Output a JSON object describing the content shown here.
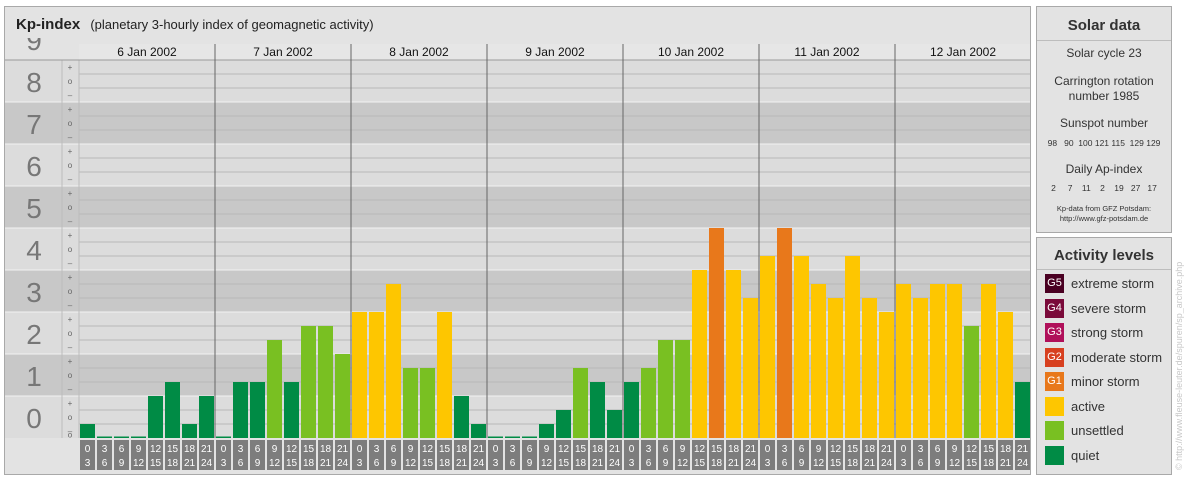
{
  "chart_data": {
    "type": "bar",
    "title": "Kp-index",
    "subtitle": "(planetary 3-hourly index of geomagnetic activity)",
    "ylim": [
      0,
      9
    ],
    "y_ticks": [
      "0",
      "1",
      "2",
      "3",
      "4",
      "5",
      "6",
      "7",
      "8",
      "9"
    ],
    "sub_tick_labels": [
      "–",
      "o",
      "+"
    ],
    "days": [
      "6 Jan 2002",
      "7 Jan 2002",
      "8 Jan 2002",
      "9 Jan 2002",
      "10 Jan 2002",
      "11 Jan 2002",
      "12 Jan 2002"
    ],
    "interval_labels": [
      [
        "0",
        "3"
      ],
      [
        "3",
        "6"
      ],
      [
        "6",
        "9"
      ],
      [
        "9",
        "12"
      ],
      [
        "12",
        "15"
      ],
      [
        "15",
        "18"
      ],
      [
        "18",
        "21"
      ],
      [
        "21",
        "24"
      ]
    ],
    "values": [
      [
        0.333,
        0,
        0,
        0,
        1,
        1.333,
        0.333,
        1
      ],
      [
        0,
        1.333,
        1.333,
        2.333,
        1.333,
        2.667,
        2.667,
        2
      ],
      [
        3,
        3,
        3.667,
        1.667,
        1.667,
        3,
        1,
        0.333
      ],
      [
        0,
        0,
        0,
        0.333,
        0.667,
        1.667,
        1.333,
        0.667
      ],
      [
        1.333,
        1.667,
        2.333,
        2.333,
        4,
        5,
        4,
        3.333
      ],
      [
        4.333,
        5,
        4.333,
        3.667,
        3.333,
        4.333,
        3.333,
        3
      ],
      [
        3.667,
        3.333,
        3.667,
        3.667,
        2.667,
        3.667,
        3,
        1.333
      ]
    ],
    "legend": [
      {
        "code": "G5",
        "label": "extreme storm",
        "color": "#4a0022"
      },
      {
        "code": "G4",
        "label": "severe storm",
        "color": "#7a0a3a"
      },
      {
        "code": "G3",
        "label": "strong storm",
        "color": "#b0105a"
      },
      {
        "code": "G2",
        "label": "moderate storm",
        "color": "#d7401f"
      },
      {
        "code": "G1",
        "label": "minor storm",
        "color": "#e8781b"
      },
      {
        "code": "",
        "label": "active",
        "color": "#fec600"
      },
      {
        "code": "",
        "label": "unsettled",
        "color": "#79c022"
      },
      {
        "code": "",
        "label": "quiet",
        "color": "#008b45"
      }
    ]
  },
  "solar": {
    "title": "Solar data",
    "cycle": "Solar cycle 23",
    "carrington_1": "Carrington rotation",
    "carrington_2": "number 1985",
    "sunspot_label": "Sunspot number",
    "sunspot_values": "98   90  100 121 115  129 129",
    "ap_label": "Daily Ap-index",
    "ap_values": "2     7    11    2    19   27   17",
    "source_1": "Kp-data from GFZ Potsdam:",
    "source_2": "http://www.gfz-potsdam.de"
  },
  "levels_title": "Activity levels",
  "watermark": "© http://www.fleuse-leuter.de/spuren/sp_archive.php"
}
